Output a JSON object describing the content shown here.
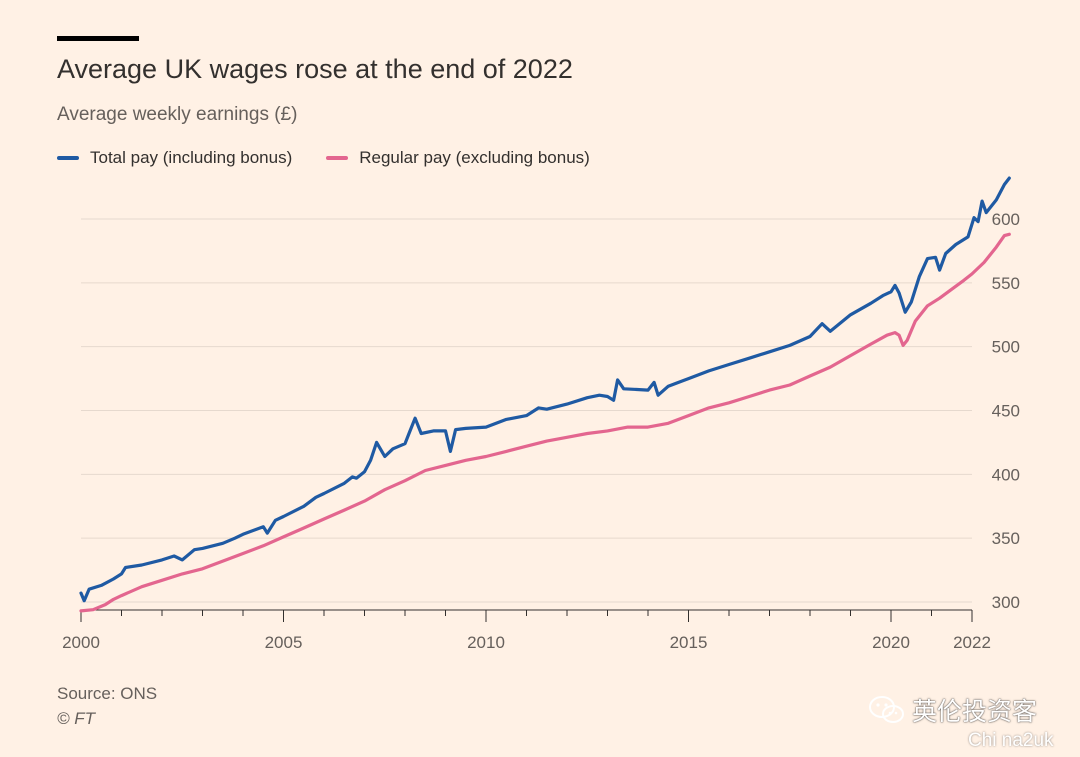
{
  "header": {
    "title": "Average UK wages rose at the end of 2022",
    "subtitle": "Average weekly earnings (£)"
  },
  "legend": [
    {
      "label": "Total pay (including bonus)",
      "color": "#1F5AA3"
    },
    {
      "label": "Regular pay (excluding bonus)",
      "color": "#E3668F"
    }
  ],
  "footer": {
    "source": "Source: ONS",
    "copyright": "© FT"
  },
  "watermark": {
    "brand": "英伦投资客",
    "handle": "Chi na2uk",
    "icon": "wechat-icon"
  },
  "colors": {
    "background": "#FFF1E5",
    "gridline": "#E6D9CE",
    "total_pay": "#1F5AA3",
    "regular_pay": "#E3668F"
  },
  "chart_data": {
    "type": "line",
    "title": "Average UK wages rose at the end of 2022",
    "subtitle": "Average weekly earnings (£)",
    "xlim": [
      2000,
      2022.9
    ],
    "ylim": [
      290,
      640
    ],
    "x_ticks": [
      2000,
      2005,
      2010,
      2015,
      2020,
      2022
    ],
    "y_ticks": [
      300,
      350,
      400,
      450,
      500,
      550,
      600
    ],
    "y_axis_position": "right",
    "grid": "horizontal",
    "series": [
      {
        "name": "Total pay (including bonus)",
        "color": "#1F5AA3",
        "points": [
          [
            2000.0,
            307
          ],
          [
            2000.08,
            301
          ],
          [
            2000.2,
            310
          ],
          [
            2000.5,
            313
          ],
          [
            2000.8,
            318
          ],
          [
            2001.0,
            322
          ],
          [
            2001.1,
            327
          ],
          [
            2001.5,
            329
          ],
          [
            2002.0,
            333
          ],
          [
            2002.3,
            336
          ],
          [
            2002.5,
            333
          ],
          [
            2002.8,
            341
          ],
          [
            2003.0,
            342
          ],
          [
            2003.5,
            346
          ],
          [
            2003.8,
            350
          ],
          [
            2004.0,
            353
          ],
          [
            2004.5,
            359
          ],
          [
            2004.6,
            354
          ],
          [
            2004.8,
            364
          ],
          [
            2005.0,
            367
          ],
          [
            2005.5,
            375
          ],
          [
            2005.8,
            382
          ],
          [
            2006.0,
            385
          ],
          [
            2006.5,
            393
          ],
          [
            2006.7,
            398
          ],
          [
            2006.8,
            397
          ],
          [
            2007.0,
            402
          ],
          [
            2007.15,
            411
          ],
          [
            2007.3,
            425
          ],
          [
            2007.5,
            414
          ],
          [
            2007.7,
            420
          ],
          [
            2008.0,
            424
          ],
          [
            2008.1,
            432
          ],
          [
            2008.25,
            444
          ],
          [
            2008.4,
            432
          ],
          [
            2008.7,
            434
          ],
          [
            2009.0,
            434
          ],
          [
            2009.12,
            418
          ],
          [
            2009.25,
            435
          ],
          [
            2009.5,
            436
          ],
          [
            2010.0,
            437
          ],
          [
            2010.5,
            443
          ],
          [
            2011.0,
            446
          ],
          [
            2011.3,
            452
          ],
          [
            2011.5,
            451
          ],
          [
            2012.0,
            455
          ],
          [
            2012.5,
            460
          ],
          [
            2012.8,
            462
          ],
          [
            2013.0,
            461
          ],
          [
            2013.15,
            458
          ],
          [
            2013.25,
            474
          ],
          [
            2013.4,
            467
          ],
          [
            2014.0,
            466
          ],
          [
            2014.15,
            472
          ],
          [
            2014.25,
            462
          ],
          [
            2014.5,
            469
          ],
          [
            2015.0,
            475
          ],
          [
            2015.5,
            481
          ],
          [
            2016.0,
            486
          ],
          [
            2016.5,
            491
          ],
          [
            2017.0,
            496
          ],
          [
            2017.5,
            501
          ],
          [
            2018.0,
            508
          ],
          [
            2018.3,
            518
          ],
          [
            2018.5,
            512
          ],
          [
            2019.0,
            525
          ],
          [
            2019.5,
            534
          ],
          [
            2019.8,
            540
          ],
          [
            2020.0,
            543
          ],
          [
            2020.1,
            548
          ],
          [
            2020.2,
            542
          ],
          [
            2020.35,
            527
          ],
          [
            2020.5,
            535
          ],
          [
            2020.7,
            555
          ],
          [
            2020.9,
            569
          ],
          [
            2021.1,
            570
          ],
          [
            2021.2,
            560
          ],
          [
            2021.35,
            573
          ],
          [
            2021.6,
            580
          ],
          [
            2021.9,
            586
          ],
          [
            2022.05,
            601
          ],
          [
            2022.15,
            598
          ],
          [
            2022.25,
            614
          ],
          [
            2022.35,
            605
          ],
          [
            2022.6,
            615
          ],
          [
            2022.8,
            627
          ],
          [
            2022.92,
            632
          ]
        ]
      },
      {
        "name": "Regular pay (excluding bonus)",
        "color": "#E3668F",
        "points": [
          [
            2000.0,
            293
          ],
          [
            2000.3,
            294
          ],
          [
            2000.6,
            298
          ],
          [
            2000.8,
            302
          ],
          [
            2001.0,
            305
          ],
          [
            2001.5,
            312
          ],
          [
            2002.0,
            317
          ],
          [
            2002.5,
            322
          ],
          [
            2003.0,
            326
          ],
          [
            2003.5,
            332
          ],
          [
            2004.0,
            338
          ],
          [
            2004.5,
            344
          ],
          [
            2005.0,
            351
          ],
          [
            2005.5,
            358
          ],
          [
            2006.0,
            365
          ],
          [
            2006.5,
            372
          ],
          [
            2007.0,
            379
          ],
          [
            2007.5,
            388
          ],
          [
            2008.0,
            395
          ],
          [
            2008.5,
            403
          ],
          [
            2009.0,
            407
          ],
          [
            2009.5,
            411
          ],
          [
            2010.0,
            414
          ],
          [
            2010.5,
            418
          ],
          [
            2011.0,
            422
          ],
          [
            2011.5,
            426
          ],
          [
            2012.0,
            429
          ],
          [
            2012.5,
            432
          ],
          [
            2013.0,
            434
          ],
          [
            2013.5,
            437
          ],
          [
            2014.0,
            437
          ],
          [
            2014.5,
            440
          ],
          [
            2015.0,
            446
          ],
          [
            2015.5,
            452
          ],
          [
            2016.0,
            456
          ],
          [
            2016.5,
            461
          ],
          [
            2017.0,
            466
          ],
          [
            2017.5,
            470
          ],
          [
            2018.0,
            477
          ],
          [
            2018.5,
            484
          ],
          [
            2019.0,
            493
          ],
          [
            2019.5,
            502
          ],
          [
            2019.9,
            509
          ],
          [
            2020.1,
            511
          ],
          [
            2020.2,
            509
          ],
          [
            2020.3,
            501
          ],
          [
            2020.4,
            505
          ],
          [
            2020.6,
            520
          ],
          [
            2020.9,
            532
          ],
          [
            2021.2,
            538
          ],
          [
            2021.5,
            545
          ],
          [
            2021.8,
            552
          ],
          [
            2022.0,
            557
          ],
          [
            2022.3,
            566
          ],
          [
            2022.6,
            578
          ],
          [
            2022.8,
            587
          ],
          [
            2022.92,
            588
          ]
        ]
      }
    ]
  }
}
